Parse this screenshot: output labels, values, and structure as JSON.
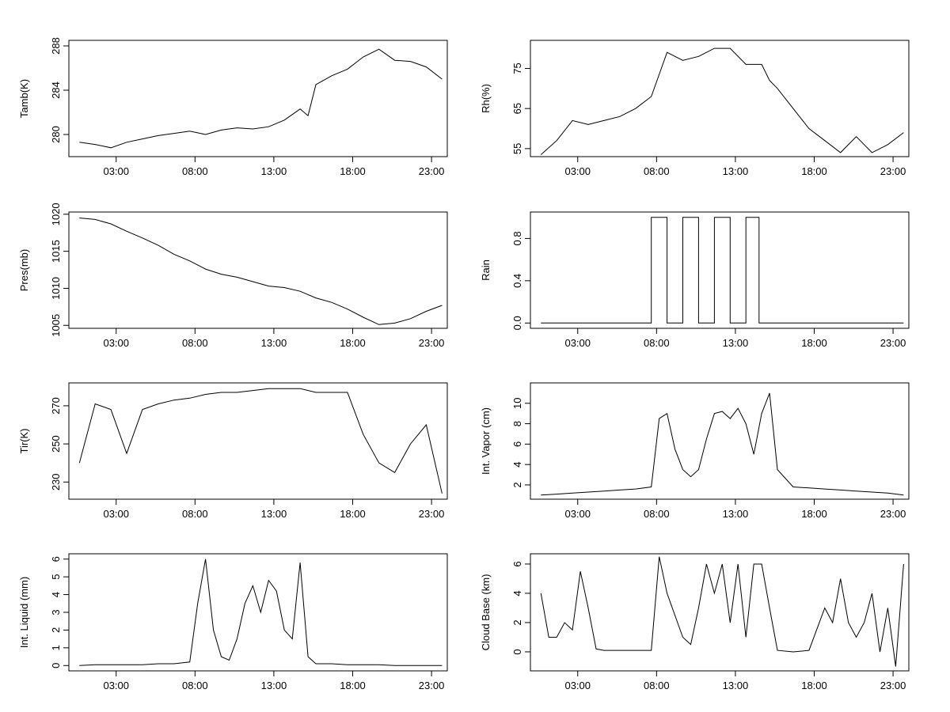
{
  "chart_data": [
    {
      "type": "line",
      "ylabel": "Tamb(K)",
      "x": [
        "00:40",
        "01:40",
        "02:40",
        "03:40",
        "04:40",
        "05:40",
        "06:40",
        "07:40",
        "08:40",
        "09:40",
        "10:40",
        "11:40",
        "12:40",
        "13:40",
        "14:40",
        "15:10",
        "15:40",
        "16:40",
        "17:40",
        "18:40",
        "19:40",
        "20:40",
        "21:40",
        "22:40",
        "23:40"
      ],
      "values": [
        279.3,
        279.1,
        278.8,
        279.3,
        279.6,
        279.9,
        280.1,
        280.3,
        280.0,
        280.4,
        280.6,
        280.5,
        280.7,
        281.3,
        282.3,
        281.7,
        284.5,
        285.3,
        285.9,
        287.0,
        287.7,
        286.7,
        286.6,
        286.1,
        285.0
      ],
      "xlim": [
        "00:00",
        "24:00"
      ],
      "ylim": [
        278,
        288.5
      ],
      "xticks": [
        "03:00",
        "08:00",
        "13:00",
        "18:00",
        "23:00"
      ],
      "yticks": [
        280,
        284,
        288
      ]
    },
    {
      "type": "line",
      "ylabel": "Rh(%)",
      "x": [
        "00:40",
        "01:40",
        "02:40",
        "03:40",
        "04:40",
        "05:40",
        "06:40",
        "07:40",
        "08:40",
        "09:40",
        "10:40",
        "11:40",
        "12:40",
        "13:40",
        "14:40",
        "15:10",
        "15:40",
        "16:40",
        "17:40",
        "18:40",
        "19:40",
        "20:40",
        "21:40",
        "22:40",
        "23:40"
      ],
      "values": [
        53.5,
        57,
        62,
        61,
        62,
        63,
        65,
        68,
        79,
        77,
        78,
        80,
        80,
        76,
        76,
        72,
        70,
        65,
        60,
        57,
        54,
        58,
        54,
        56,
        59
      ],
      "xlim": [
        "00:00",
        "24:00"
      ],
      "ylim": [
        53,
        82
      ],
      "xticks": [
        "03:00",
        "08:00",
        "13:00",
        "18:00",
        "23:00"
      ],
      "yticks": [
        55,
        65,
        75
      ]
    },
    {
      "type": "line",
      "ylabel": "Pres(mb)",
      "x": [
        "00:40",
        "01:40",
        "02:40",
        "03:40",
        "04:40",
        "05:40",
        "06:40",
        "07:40",
        "08:40",
        "09:40",
        "10:40",
        "11:40",
        "12:40",
        "13:40",
        "14:40",
        "15:40",
        "16:40",
        "17:40",
        "18:40",
        "19:40",
        "20:40",
        "21:40",
        "22:40",
        "23:40"
      ],
      "values": [
        1019.5,
        1019.3,
        1018.7,
        1017.7,
        1016.8,
        1015.8,
        1014.6,
        1013.7,
        1012.6,
        1011.9,
        1011.5,
        1010.9,
        1010.3,
        1010.1,
        1009.6,
        1008.7,
        1008.1,
        1007.2,
        1006.1,
        1005.1,
        1005.3,
        1005.9,
        1006.9,
        1007.7
      ],
      "xlim": [
        "00:00",
        "24:00"
      ],
      "ylim": [
        1004.6,
        1020.3
      ],
      "xticks": [
        "03:00",
        "08:00",
        "13:00",
        "18:00",
        "23:00"
      ],
      "yticks": [
        1005,
        1010,
        1015,
        1020
      ]
    },
    {
      "type": "line",
      "ylabel": "Rain",
      "x": [
        "00:40",
        "07:40",
        "07:40",
        "08:40",
        "08:40",
        "09:40",
        "09:40",
        "10:40",
        "10:40",
        "11:40",
        "11:40",
        "12:40",
        "12:40",
        "13:40",
        "13:40",
        "14:30",
        "14:30",
        "23:40"
      ],
      "values": [
        0,
        0,
        1,
        1,
        0,
        0,
        1,
        1,
        0,
        0,
        1,
        1,
        0,
        0,
        1,
        1,
        0,
        0
      ],
      "xlim": [
        "00:00",
        "24:00"
      ],
      "ylim": [
        -0.05,
        1.05
      ],
      "xticks": [
        "03:00",
        "08:00",
        "13:00",
        "18:00",
        "23:00"
      ],
      "yticks": [
        0.0,
        0.4,
        0.8
      ]
    },
    {
      "type": "line",
      "ylabel": "Tir(K)",
      "x": [
        "00:40",
        "01:40",
        "02:40",
        "03:40",
        "04:40",
        "05:40",
        "06:40",
        "07:40",
        "08:40",
        "09:40",
        "10:40",
        "11:40",
        "12:40",
        "13:40",
        "14:40",
        "15:40",
        "16:40",
        "17:40",
        "18:40",
        "19:40",
        "20:40",
        "21:40",
        "22:40",
        "23:40"
      ],
      "values": [
        240,
        271,
        268,
        245,
        268,
        271,
        273,
        274,
        276,
        277,
        277,
        278,
        279,
        279,
        279,
        277,
        277,
        277,
        255,
        240,
        235,
        250,
        260,
        224
      ],
      "xlim": [
        "00:00",
        "24:00"
      ],
      "ylim": [
        221,
        282
      ],
      "xticks": [
        "03:00",
        "08:00",
        "13:00",
        "18:00",
        "23:00"
      ],
      "yticks": [
        230,
        250,
        270
      ]
    },
    {
      "type": "line",
      "ylabel": "Int. Vapor (cm)",
      "x": [
        "00:40",
        "01:40",
        "02:40",
        "03:40",
        "04:40",
        "05:40",
        "06:40",
        "07:40",
        "08:10",
        "08:40",
        "09:10",
        "09:40",
        "10:10",
        "10:40",
        "11:10",
        "11:40",
        "12:10",
        "12:40",
        "13:10",
        "13:40",
        "14:10",
        "14:40",
        "15:10",
        "15:40",
        "16:40",
        "17:40",
        "18:40",
        "19:40",
        "20:40",
        "21:40",
        "22:40",
        "23:40"
      ],
      "values": [
        1.0,
        1.1,
        1.2,
        1.3,
        1.4,
        1.5,
        1.6,
        1.8,
        8.5,
        9.0,
        5.5,
        3.5,
        2.8,
        3.5,
        6.5,
        9.0,
        9.2,
        8.5,
        9.5,
        8.0,
        5.0,
        9.0,
        11.0,
        3.5,
        1.8,
        1.7,
        1.6,
        1.5,
        1.4,
        1.3,
        1.2,
        1.0
      ],
      "xlim": [
        "00:00",
        "24:00"
      ],
      "ylim": [
        0.6,
        12
      ],
      "xticks": [
        "03:00",
        "08:00",
        "13:00",
        "18:00",
        "23:00"
      ],
      "yticks": [
        2,
        4,
        6,
        8,
        10
      ]
    },
    {
      "type": "line",
      "ylabel": "Int. Liquid (mm)",
      "x": [
        "00:40",
        "01:40",
        "02:40",
        "03:40",
        "04:40",
        "05:40",
        "06:40",
        "07:40",
        "08:10",
        "08:40",
        "09:10",
        "09:40",
        "10:10",
        "10:40",
        "11:10",
        "11:40",
        "12:10",
        "12:40",
        "13:10",
        "13:40",
        "14:10",
        "14:40",
        "15:10",
        "15:40",
        "16:40",
        "17:40",
        "18:40",
        "19:40",
        "20:40",
        "21:40",
        "22:40",
        "23:40"
      ],
      "values": [
        0,
        0.05,
        0.05,
        0.05,
        0.05,
        0.1,
        0.1,
        0.2,
        3.5,
        6.0,
        2.0,
        0.5,
        0.3,
        1.5,
        3.5,
        4.5,
        3.0,
        4.8,
        4.2,
        2.0,
        1.5,
        5.8,
        0.5,
        0.1,
        0.1,
        0.05,
        0.05,
        0.05,
        0,
        0,
        0,
        0
      ],
      "xlim": [
        "00:00",
        "24:00"
      ],
      "ylim": [
        -0.3,
        6.3
      ],
      "xticks": [
        "03:00",
        "08:00",
        "13:00",
        "18:00",
        "23:00"
      ],
      "yticks": [
        0,
        1,
        2,
        3,
        4,
        5,
        6
      ]
    },
    {
      "type": "line",
      "ylabel": "Cloud Base (km)",
      "x": [
        "00:40",
        "01:10",
        "01:40",
        "02:10",
        "02:40",
        "03:10",
        "03:40",
        "04:10",
        "04:40",
        "05:40",
        "06:40",
        "07:40",
        "08:10",
        "08:40",
        "09:40",
        "10:10",
        "10:40",
        "11:10",
        "11:40",
        "12:10",
        "12:40",
        "13:10",
        "13:40",
        "14:10",
        "14:40",
        "15:10",
        "15:40",
        "16:40",
        "17:40",
        "18:40",
        "19:10",
        "19:40",
        "20:10",
        "20:40",
        "21:10",
        "21:40",
        "22:10",
        "22:40",
        "23:10",
        "23:40"
      ],
      "values": [
        4,
        1,
        1,
        2,
        1.5,
        5.5,
        3,
        0.2,
        0.1,
        0.1,
        0.1,
        0.1,
        6.5,
        4,
        1,
        0.5,
        3,
        6,
        4,
        6,
        2,
        6,
        1,
        6,
        6,
        3,
        0.1,
        0,
        0.1,
        3,
        2,
        5,
        2,
        1,
        2,
        4,
        0,
        3,
        -1,
        6
      ],
      "xlim": [
        "00:00",
        "24:00"
      ],
      "ylim": [
        -1.3,
        6.7
      ],
      "xticks": [
        "03:00",
        "08:00",
        "13:00",
        "18:00",
        "23:00"
      ],
      "yticks": [
        0,
        2,
        4,
        6
      ]
    }
  ]
}
